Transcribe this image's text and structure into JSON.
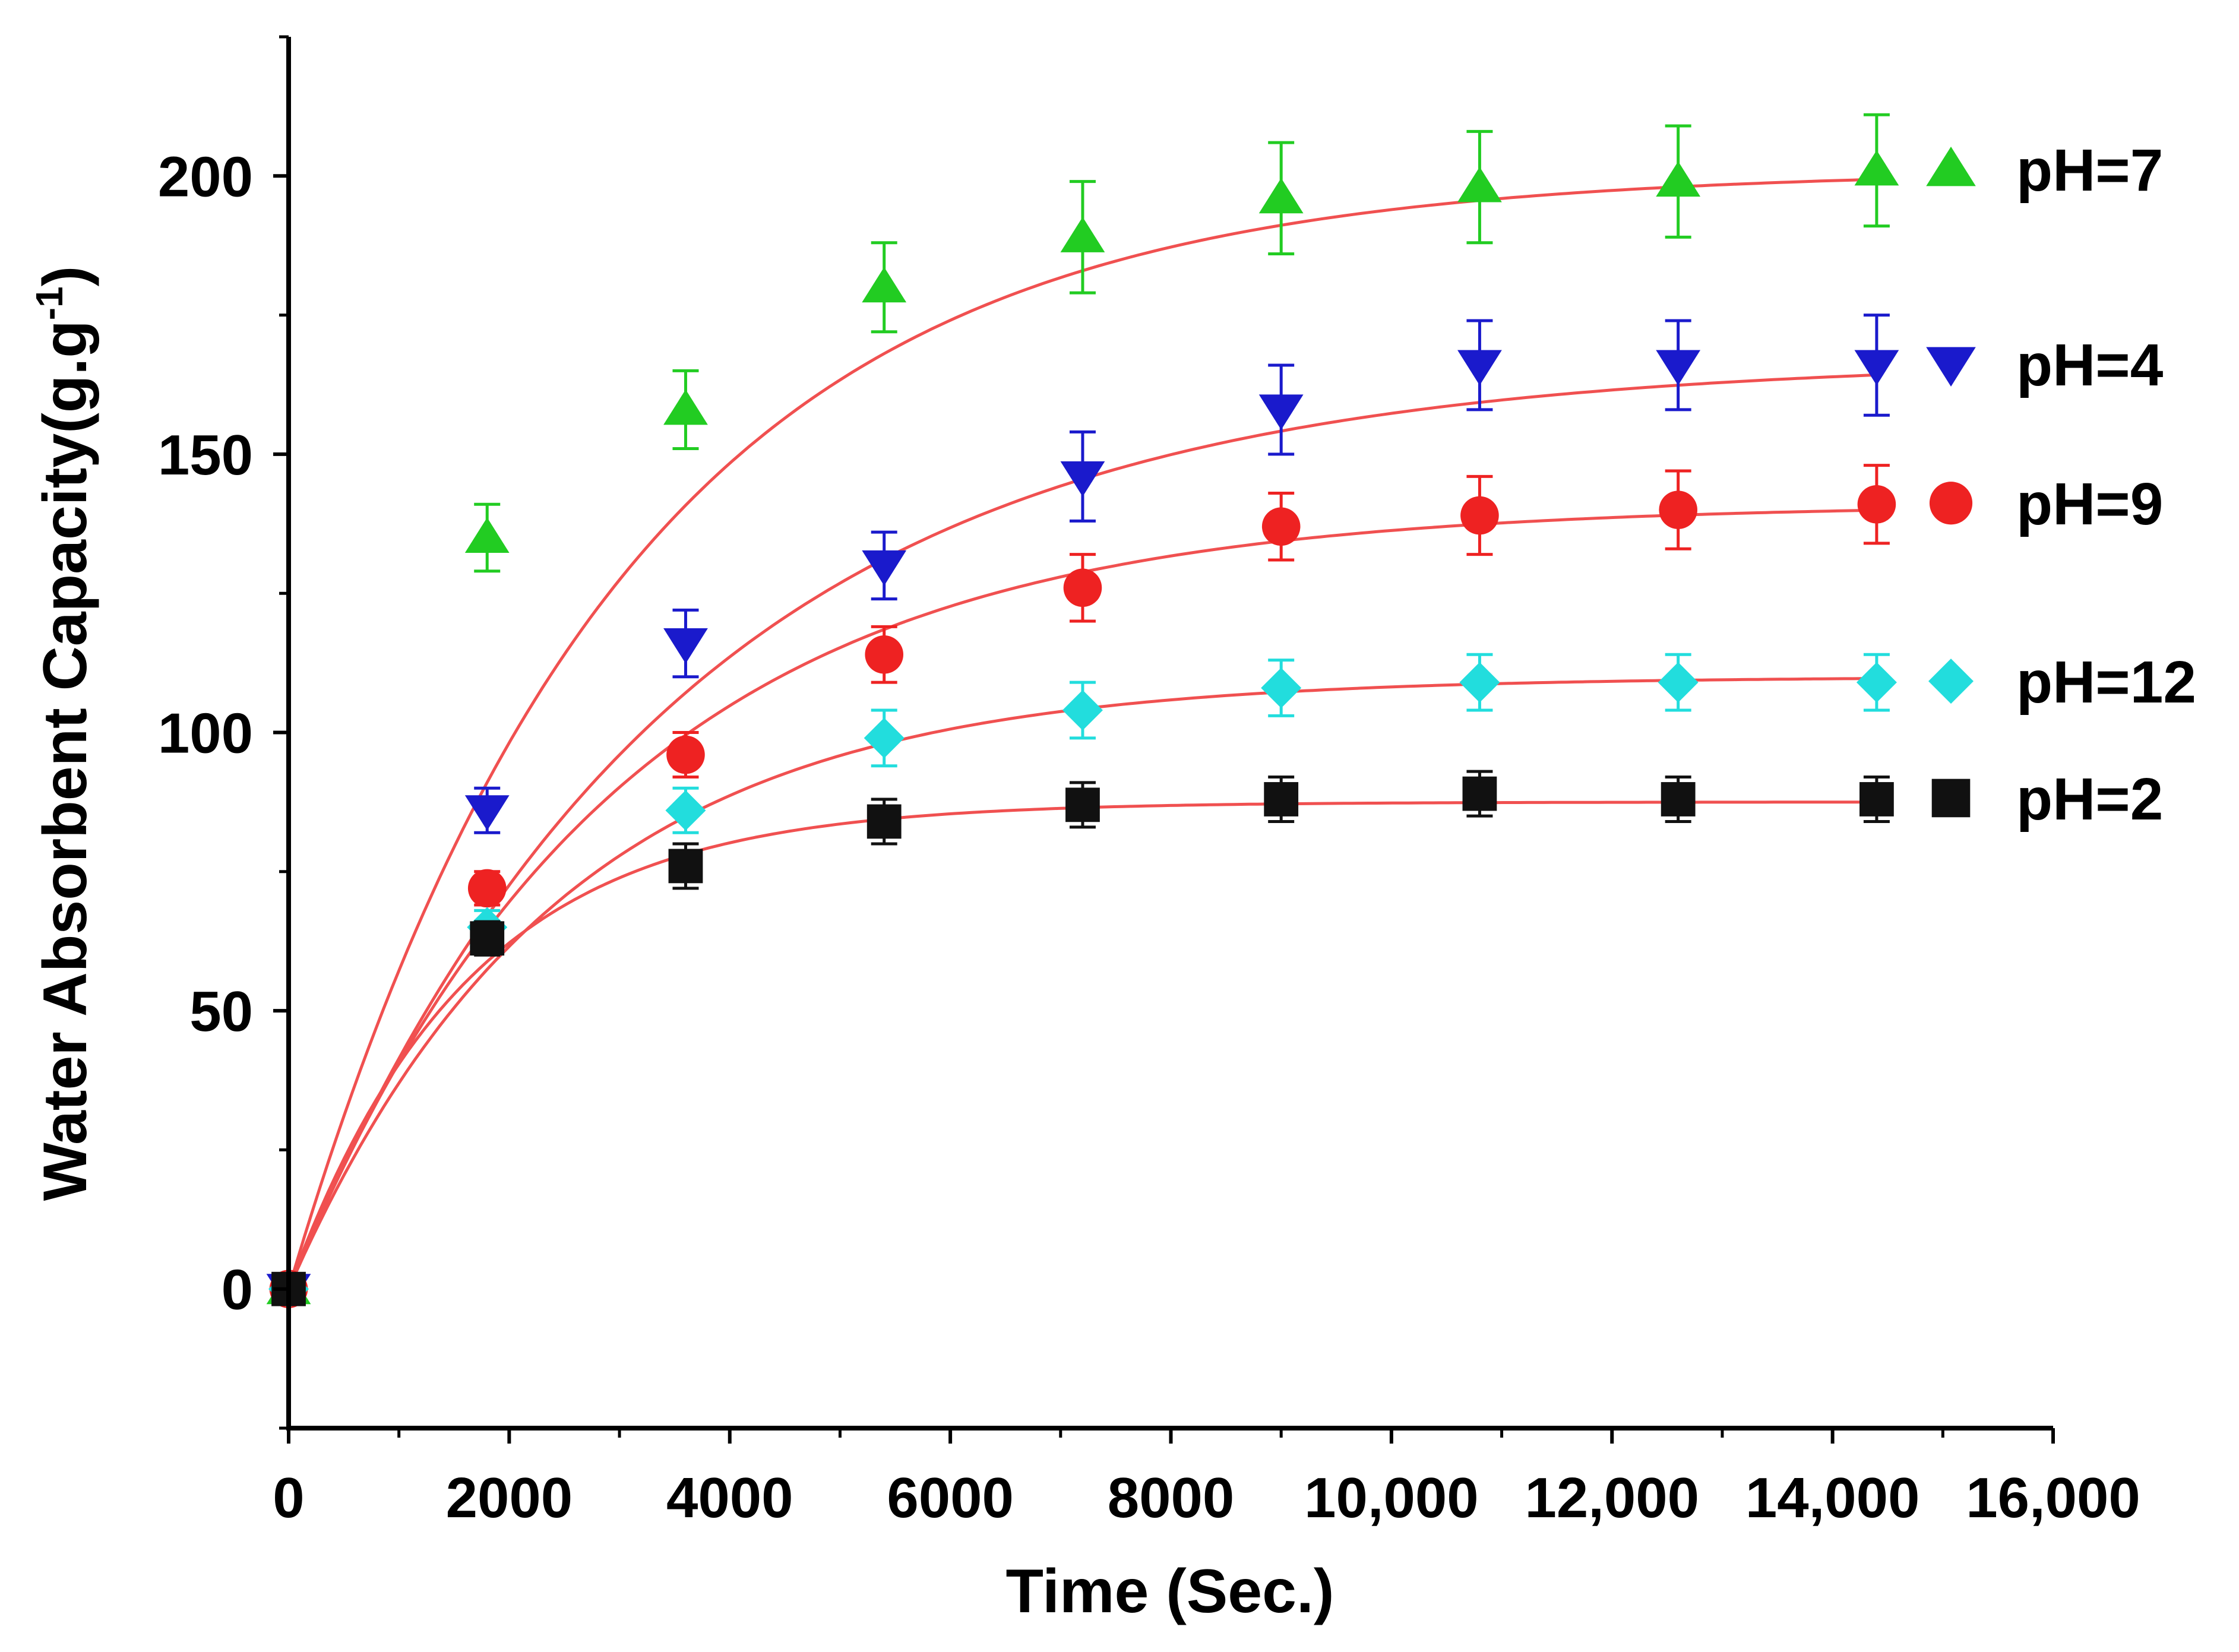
{
  "chart_data": {
    "type": "scatter",
    "title": "",
    "xlabel": "Time (Sec.)",
    "ylabel_main": "Water Absorbent Capacity(g.g",
    "ylabel_sup": "-1",
    "ylabel_close": ")",
    "xlim": [
      0,
      16000
    ],
    "ylim": [
      -25,
      225
    ],
    "x": [
      0,
      1800,
      3600,
      5400,
      7200,
      9000,
      10800,
      12600,
      14400
    ],
    "x_ticks": [
      {
        "value": 0,
        "label": "0"
      },
      {
        "value": 2000,
        "label": "2000"
      },
      {
        "value": 4000,
        "label": "4000"
      },
      {
        "value": 6000,
        "label": "6000"
      },
      {
        "value": 8000,
        "label": "8000"
      },
      {
        "value": 10000,
        "label": "10,000"
      },
      {
        "value": 12000,
        "label": "12,000"
      },
      {
        "value": 14000,
        "label": "14,000"
      },
      {
        "value": 16000,
        "label": "16,000"
      }
    ],
    "y_ticks": [
      {
        "value": 0,
        "label": "0"
      },
      {
        "value": 50,
        "label": "50"
      },
      {
        "value": 100,
        "label": "100"
      },
      {
        "value": 150,
        "label": "150"
      },
      {
        "value": 200,
        "label": "200"
      }
    ],
    "grid": false,
    "fit_color": "#f05050",
    "legend_position": "right",
    "series": [
      {
        "name": "pH=7",
        "marker": "triangle-up",
        "color": "#22cc22",
        "values": [
          0,
          135,
          158,
          180,
          189,
          196,
          198,
          199,
          201
        ],
        "errors": [
          0,
          6,
          7,
          8,
          10,
          10,
          10,
          10,
          10
        ],
        "fit_max": 201,
        "fit_k": 0.000335
      },
      {
        "name": "pH=4",
        "marker": "triangle-down",
        "color": "#1a1acc",
        "values": [
          0,
          86,
          116,
          130,
          146,
          158,
          166,
          166,
          166
        ],
        "errors": [
          0,
          4,
          6,
          6,
          8,
          8,
          8,
          8,
          9
        ],
        "fit_max": 167,
        "fit_k": 0.000285
      },
      {
        "name": "pH=9",
        "marker": "circle",
        "color": "#ee2222",
        "values": [
          0,
          72,
          96,
          114,
          126,
          137,
          139,
          140,
          141
        ],
        "errors": [
          0,
          3,
          4,
          5,
          6,
          6,
          7,
          7,
          7
        ],
        "fit_max": 141,
        "fit_k": 0.00034
      },
      {
        "name": "pH=12",
        "marker": "diamond",
        "color": "#22dddd",
        "values": [
          0,
          65,
          86,
          99,
          104,
          108,
          109,
          109,
          109
        ],
        "errors": [
          0,
          3,
          4,
          5,
          5,
          5,
          5,
          5,
          5
        ],
        "fit_max": 110,
        "fit_k": 0.00041
      },
      {
        "name": "pH=2",
        "marker": "square",
        "color": "#111111",
        "values": [
          0,
          63,
          76,
          84,
          87,
          88,
          89,
          88,
          88
        ],
        "errors": [
          0,
          3,
          4,
          4,
          4,
          4,
          4,
          4,
          4
        ],
        "fit_max": 87.5,
        "fit_k": 0.00062
      }
    ]
  }
}
